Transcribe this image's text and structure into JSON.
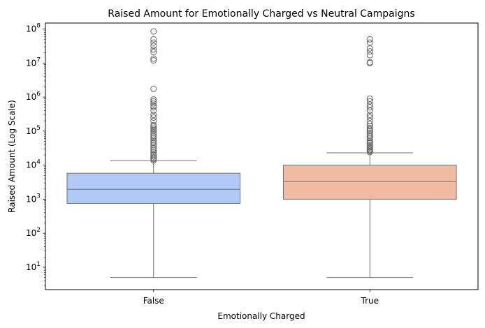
{
  "chart_data": {
    "type": "box",
    "title": "Raised Amount for Emotionally Charged vs Neutral Campaigns",
    "xlabel": "Emotionally Charged",
    "ylabel": "Raised Amount (Log Scale)",
    "yscale": "log",
    "ylim": [
      2.2,
      150000000
    ],
    "ytick_labels": [
      {
        "value": 10,
        "base": "10",
        "exp": "1"
      },
      {
        "value": 100,
        "base": "10",
        "exp": "2"
      },
      {
        "value": 1000,
        "base": "10",
        "exp": "3"
      },
      {
        "value": 10000,
        "base": "10",
        "exp": "4"
      },
      {
        "value": 100000,
        "base": "10",
        "exp": "5"
      },
      {
        "value": 1000000,
        "base": "10",
        "exp": "6"
      },
      {
        "value": 10000000,
        "base": "10",
        "exp": "7"
      },
      {
        "value": 100000000,
        "base": "10",
        "exp": "8"
      }
    ],
    "categories": [
      "False",
      "True"
    ],
    "boxes": [
      {
        "category": "False",
        "color": "#b3c9f5",
        "whisker_low": 5,
        "q1": 750,
        "median": 1950,
        "q3": 5800,
        "whisker_high": 13500,
        "outliers": [
          13800,
          15000,
          16500,
          18000,
          20000,
          22000,
          25000,
          28000,
          31000,
          35000,
          40000,
          45000,
          50000,
          56000,
          63000,
          70000,
          80000,
          90000,
          100000,
          110000,
          120000,
          135000,
          150000,
          200000,
          250000,
          300000,
          400000,
          500000,
          550000,
          650000,
          750000,
          850000,
          1750000,
          12000000,
          13500000,
          21000000,
          25000000,
          32000000,
          40000000,
          50000000,
          85000000
        ]
      },
      {
        "category": "True",
        "color": "#f0bba2",
        "whisker_low": 5,
        "q1": 1000,
        "median": 3300,
        "q3": 10000,
        "whisker_high": 23000,
        "outliers": [
          24000,
          26000,
          28000,
          30000,
          33000,
          36000,
          40000,
          45000,
          50000,
          56000,
          63000,
          70000,
          80000,
          90000,
          100000,
          110000,
          125000,
          140000,
          160000,
          200000,
          250000,
          300000,
          400000,
          500000,
          600000,
          750000,
          900000,
          10000000,
          10500000,
          17000000,
          22000000,
          27000000,
          40000000,
          50000000
        ]
      }
    ],
    "outlier_edge_color": "#666666",
    "line_color": "#707070",
    "grid": false,
    "legend": "none"
  }
}
